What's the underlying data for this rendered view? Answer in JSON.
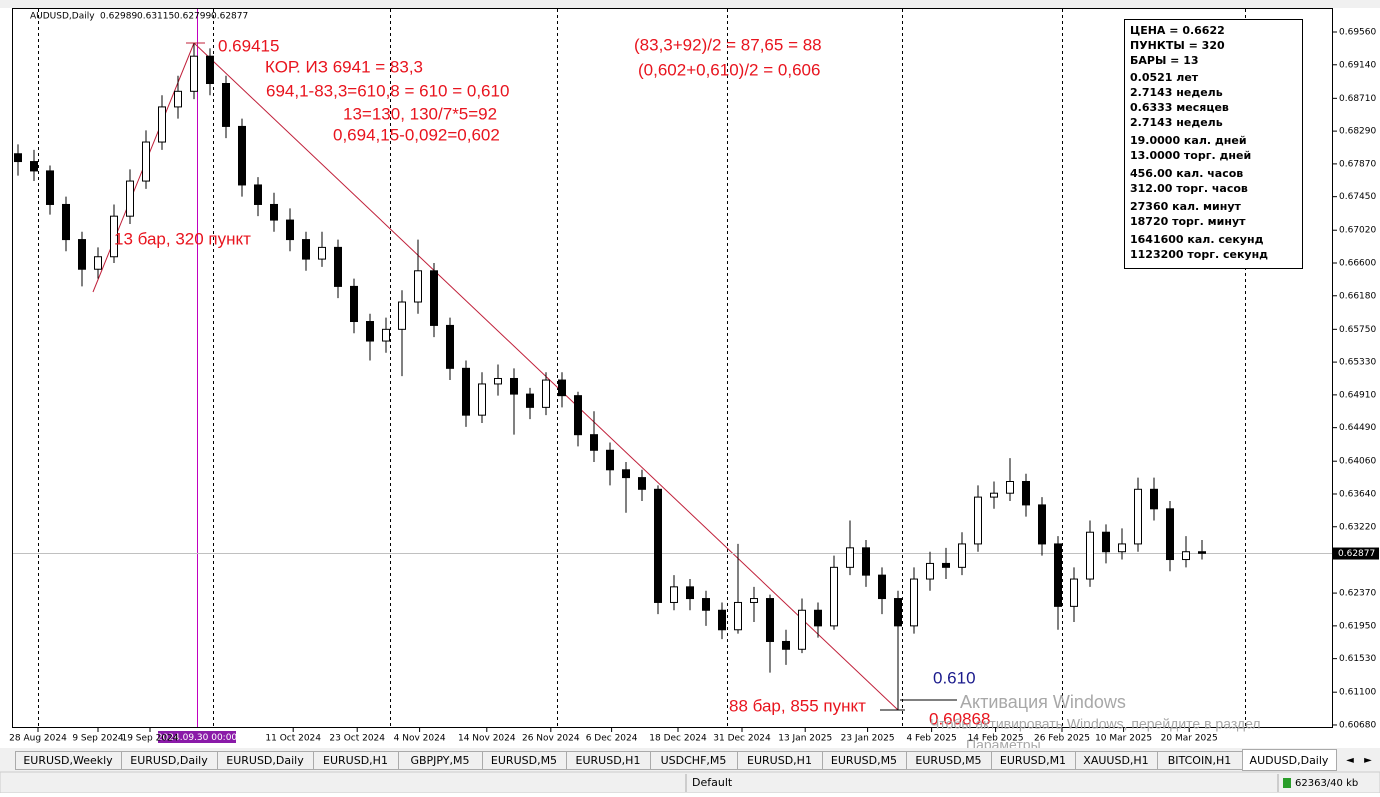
{
  "chart_data": {
    "type": "candlestick",
    "symbol": "AUDUSD,Daily",
    "ohlc": [
      0.62989,
      0.63115,
      0.62799,
      0.62877
    ],
    "current_price": 0.62877,
    "crosshair_date": "2024.09.30 00:00",
    "ylim": [
      0.60654,
      0.69842
    ],
    "yticks": [
      {
        "value": 0.6956,
        "label": "0.69560"
      },
      {
        "value": 0.6914,
        "label": "0.69140"
      },
      {
        "value": 0.6871,
        "label": "0.68710"
      },
      {
        "value": 0.6829,
        "label": "0.68290"
      },
      {
        "value": 0.6787,
        "label": "0.67870"
      },
      {
        "value": 0.6745,
        "label": "0.67450"
      },
      {
        "value": 0.6702,
        "label": "0.67020"
      },
      {
        "value": 0.666,
        "label": "0.66600"
      },
      {
        "value": 0.6618,
        "label": "0.66180"
      },
      {
        "value": 0.6575,
        "label": "0.65750"
      },
      {
        "value": 0.6533,
        "label": "0.65330"
      },
      {
        "value": 0.6491,
        "label": "0.64910"
      },
      {
        "value": 0.6449,
        "label": "0.64490"
      },
      {
        "value": 0.6406,
        "label": "0.64060"
      },
      {
        "value": 0.6364,
        "label": "0.63640"
      },
      {
        "value": 0.6322,
        "label": "0.63220"
      },
      {
        "value": 0.6237,
        "label": "0.62370"
      },
      {
        "value": 0.6195,
        "label": "0.61950"
      },
      {
        "value": 0.6153,
        "label": "0.61530"
      },
      {
        "value": 0.611,
        "label": "0.61100"
      },
      {
        "value": 0.6068,
        "label": "0.60680"
      }
    ],
    "xlim": [
      -0.3125,
      82.125
    ],
    "xticks": [
      {
        "value": 1.25,
        "label": "28 Aug 2024"
      },
      {
        "value": 5,
        "label": "9 Sep 2024"
      },
      {
        "value": 8.25,
        "label": "19 Sep 2024"
      },
      {
        "value": 17.2,
        "label": "11 Oct 2024"
      },
      {
        "value": 21.2,
        "label": "23 Oct 2024"
      },
      {
        "value": 25.1,
        "label": "4 Nov 2024"
      },
      {
        "value": 29.3,
        "label": "14 Nov 2024"
      },
      {
        "value": 33.3,
        "label": "26 Nov 2024"
      },
      {
        "value": 37.1,
        "label": "6 Dec 2024"
      },
      {
        "value": 41.25,
        "label": "18 Dec 2024"
      },
      {
        "value": 45.25,
        "label": "31 Dec 2024"
      },
      {
        "value": 49.2,
        "label": "13 Jan 2025"
      },
      {
        "value": 53.1,
        "label": "23 Jan 2025"
      },
      {
        "value": 57.1,
        "label": "4 Feb 2025"
      },
      {
        "value": 61.1,
        "label": "14 Feb 2025"
      },
      {
        "value": 65.25,
        "label": "26 Feb 2025"
      },
      {
        "value": 69.1,
        "label": "10 Mar 2025"
      },
      {
        "value": 73.2,
        "label": "20 Mar 2025"
      }
    ],
    "candles": [
      [
        0.68,
        0.6812,
        0.6772,
        0.679
      ],
      [
        0.679,
        0.6805,
        0.6765,
        0.6778
      ],
      [
        0.6778,
        0.6785,
        0.6722,
        0.6735
      ],
      [
        0.6735,
        0.6745,
        0.6675,
        0.669
      ],
      [
        0.669,
        0.67,
        0.663,
        0.6652
      ],
      [
        0.6652,
        0.668,
        0.664,
        0.6668
      ],
      [
        0.6668,
        0.6735,
        0.666,
        0.672
      ],
      [
        0.672,
        0.678,
        0.671,
        0.6765
      ],
      [
        0.6765,
        0.683,
        0.6755,
        0.6815
      ],
      [
        0.6815,
        0.6875,
        0.6805,
        0.686
      ],
      [
        0.686,
        0.69,
        0.6845,
        0.688
      ],
      [
        0.688,
        0.69415,
        0.687,
        0.6925
      ],
      [
        0.6925,
        0.6935,
        0.6875,
        0.689
      ],
      [
        0.689,
        0.69,
        0.682,
        0.6835
      ],
      [
        0.6835,
        0.6845,
        0.6745,
        0.676
      ],
      [
        0.676,
        0.677,
        0.672,
        0.6735
      ],
      [
        0.6735,
        0.675,
        0.67,
        0.6715
      ],
      [
        0.6715,
        0.673,
        0.6675,
        0.669
      ],
      [
        0.669,
        0.67,
        0.665,
        0.6665
      ],
      [
        0.6665,
        0.67,
        0.6655,
        0.668
      ],
      [
        0.668,
        0.669,
        0.6615,
        0.663
      ],
      [
        0.663,
        0.664,
        0.657,
        0.6585
      ],
      [
        0.6585,
        0.6595,
        0.6535,
        0.656
      ],
      [
        0.656,
        0.659,
        0.6545,
        0.6575
      ],
      [
        0.6575,
        0.6625,
        0.6515,
        0.661
      ],
      [
        0.661,
        0.669,
        0.6595,
        0.665
      ],
      [
        0.665,
        0.666,
        0.6565,
        0.658
      ],
      [
        0.658,
        0.659,
        0.651,
        0.6525
      ],
      [
        0.6525,
        0.6535,
        0.645,
        0.6465
      ],
      [
        0.6465,
        0.652,
        0.6455,
        0.6505
      ],
      [
        0.6505,
        0.653,
        0.649,
        0.6512
      ],
      [
        0.6512,
        0.6525,
        0.644,
        0.6492
      ],
      [
        0.6492,
        0.65,
        0.646,
        0.6475
      ],
      [
        0.6475,
        0.652,
        0.6465,
        0.651
      ],
      [
        0.651,
        0.652,
        0.6475,
        0.649
      ],
      [
        0.649,
        0.6495,
        0.6425,
        0.644
      ],
      [
        0.644,
        0.647,
        0.6405,
        0.642
      ],
      [
        0.642,
        0.643,
        0.6375,
        0.6395
      ],
      [
        0.6395,
        0.6405,
        0.634,
        0.6385
      ],
      [
        0.6385,
        0.6395,
        0.6355,
        0.637
      ],
      [
        0.637,
        0.6375,
        0.621,
        0.6225
      ],
      [
        0.6225,
        0.626,
        0.6215,
        0.6245
      ],
      [
        0.6245,
        0.6255,
        0.6215,
        0.623
      ],
      [
        0.623,
        0.624,
        0.6195,
        0.6215
      ],
      [
        0.6215,
        0.6225,
        0.6178,
        0.619
      ],
      [
        0.619,
        0.63,
        0.6185,
        0.6225
      ],
      [
        0.6225,
        0.6245,
        0.62,
        0.623
      ],
      [
        0.623,
        0.6235,
        0.6135,
        0.6175
      ],
      [
        0.6175,
        0.619,
        0.6145,
        0.6165
      ],
      [
        0.6165,
        0.623,
        0.616,
        0.6215
      ],
      [
        0.6215,
        0.6225,
        0.618,
        0.6195
      ],
      [
        0.6195,
        0.6285,
        0.619,
        0.627
      ],
      [
        0.627,
        0.633,
        0.626,
        0.6295
      ],
      [
        0.6295,
        0.6305,
        0.6245,
        0.626
      ],
      [
        0.626,
        0.627,
        0.621,
        0.623
      ],
      [
        0.623,
        0.624,
        0.60868,
        0.6195
      ],
      [
        0.6195,
        0.627,
        0.6185,
        0.6255
      ],
      [
        0.6255,
        0.629,
        0.624,
        0.6275
      ],
      [
        0.6275,
        0.6295,
        0.6255,
        0.627
      ],
      [
        0.627,
        0.6315,
        0.626,
        0.63
      ],
      [
        0.63,
        0.6375,
        0.629,
        0.636
      ],
      [
        0.636,
        0.638,
        0.6345,
        0.6365
      ],
      [
        0.6365,
        0.641,
        0.6355,
        0.638
      ],
      [
        0.638,
        0.639,
        0.6335,
        0.635
      ],
      [
        0.635,
        0.636,
        0.6285,
        0.63
      ],
      [
        0.63,
        0.631,
        0.619,
        0.622
      ],
      [
        0.622,
        0.627,
        0.62,
        0.6255
      ],
      [
        0.6255,
        0.633,
        0.6245,
        0.6315
      ],
      [
        0.6315,
        0.6325,
        0.6275,
        0.629
      ],
      [
        0.629,
        0.632,
        0.628,
        0.63
      ],
      [
        0.63,
        0.6385,
        0.629,
        0.637
      ],
      [
        0.637,
        0.6385,
        0.633,
        0.6345
      ],
      [
        0.6345,
        0.6355,
        0.6265,
        0.628
      ],
      [
        0.628,
        0.631,
        0.627,
        0.629
      ],
      [
        0.629,
        0.6305,
        0.628,
        0.6288
      ]
    ],
    "bull_color": "#ffffff",
    "bear_color": "#000000"
  },
  "annotations": [
    {
      "text": "0.69415",
      "color": "#e8141e"
    },
    {
      "text": "КОР. ИЗ 6941 = 83,3",
      "color": "#e8141e"
    },
    {
      "text": "694,1-83,3=610,8 = 610 = 0,610",
      "color": "#e8141e"
    },
    {
      "text": "13=130, 130/7*5=92",
      "color": "#e8141e"
    },
    {
      "text": "0,694,15-0,092=0,602",
      "color": "#e8141e"
    },
    {
      "text": "13 бар, 320 пункт",
      "color": "#e8141e"
    },
    {
      "text": "(83,3+92)/2 = 87,65 = 88",
      "color": "#e8141e"
    },
    {
      "text": "(0,602+0,610)/2 = 0,606",
      "color": "#e8141e"
    },
    {
      "text": "88 бар, 855 пункт",
      "color": "#e8141e"
    },
    {
      "text": "0.60868",
      "color": "#e8141e"
    },
    {
      "text": "0.610",
      "color": "#1a1a8c"
    }
  ],
  "info_box": [
    "ЦЕНА = 0.6622",
    "ПУНКТЫ = 320",
    "БАРЫ = 13",
    "0.0521 лет",
    "2.7143 недель",
    "0.6333 месяцев",
    "2.7143 недель",
    "19.0000 кал. дней",
    "13.0000 торг. дней",
    "456.00 кал. часов",
    "312.00 торг. часов",
    "27360 кал. минут",
    "18720 торг. минут",
    "1641600 кал. секунд",
    "1123200 торг. секунд"
  ],
  "watermark": [
    "Активация Windows",
    "Чтобы активировать Windows, перейдите в раздел",
    "Параметры."
  ],
  "tabs": [
    "EURUSD,Weekly",
    "EURUSD,Daily",
    "EURUSD,Daily",
    "EURUSD,H1",
    "GBPJPY,M5",
    "EURUSD,M5",
    "EURUSD,H1",
    "USDCHF,M5",
    "EURUSD,H1",
    "EURUSD,M5",
    "EURUSD,M5",
    "EURUSD,M1",
    "XAUUSD,H1",
    "BITCOIN,H1",
    "AUDUSD,Daily"
  ],
  "active_tab": 14,
  "status_bar": {
    "profile": "Default",
    "traffic": "62363/40 kb"
  }
}
